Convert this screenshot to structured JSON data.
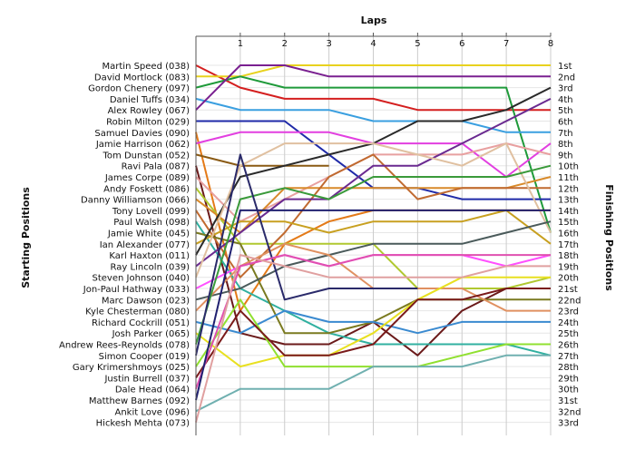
{
  "chart_data": {
    "type": "line",
    "x_title": "Laps",
    "y_left_title": "Starting Positions",
    "y_right_title": "Finishing Positions",
    "x": [
      0,
      1,
      2,
      3,
      4,
      5,
      6,
      7,
      8
    ],
    "x_tick_labels": [
      "1",
      "2",
      "3",
      "4",
      "5",
      "6",
      "7",
      "8"
    ],
    "finishing_labels": [
      "1st",
      "2nd",
      "3rd",
      "4th",
      "5th",
      "6th",
      "7th",
      "8th",
      "9th",
      "10th",
      "11th",
      "12th",
      "13th",
      "14th",
      "15th",
      "16th",
      "17th",
      "18th",
      "19th",
      "20th",
      "21st",
      "22nd",
      "23rd",
      "24th",
      "25th",
      "26th",
      "27th",
      "28th",
      "29th",
      "30th",
      "31st",
      "32nd",
      "33rd"
    ],
    "y_range": [
      1,
      33
    ],
    "grid": "vertical-and-horizontal",
    "series": [
      {
        "name": "Martin Speed (038)",
        "color": "#d41f1f",
        "positions": [
          1,
          3,
          4,
          4,
          4,
          5,
          5,
          5,
          5
        ]
      },
      {
        "name": "David Mortlock (083)",
        "color": "#e8d21e",
        "positions": [
          2,
          2,
          1,
          1,
          1,
          1,
          1,
          1,
          1
        ]
      },
      {
        "name": "Gordon Chenery (097)",
        "color": "#1f9a3a",
        "positions": [
          3,
          2,
          3,
          3,
          3,
          3,
          3,
          3,
          16
        ]
      },
      {
        "name": "Daniel Tuffs (034)",
        "color": "#3a9fe0",
        "positions": [
          4,
          5,
          5,
          5,
          6,
          6,
          6,
          7,
          7
        ]
      },
      {
        "name": "Alex Rowley (067)",
        "color": "#7a2090",
        "positions": [
          5,
          1,
          1,
          2,
          2,
          2,
          2,
          2,
          2
        ]
      },
      {
        "name": "Robin Milton (029)",
        "color": "#1f2aa8",
        "positions": [
          6,
          6,
          6,
          9,
          12,
          12,
          13,
          13,
          13
        ]
      },
      {
        "name": "Samuel Davies (090)",
        "color": "#e47a18",
        "positions": [
          7,
          23,
          17,
          15,
          14,
          14,
          14,
          14,
          14
        ]
      },
      {
        "name": "Jamie Harrison (062)",
        "color": "#e23fe0",
        "positions": [
          8,
          7,
          7,
          7,
          8,
          8,
          8,
          11,
          8
        ]
      },
      {
        "name": "Tom Dunstan (052)",
        "color": "#8a5a14",
        "positions": [
          9,
          10,
          10,
          10,
          null,
          null,
          null,
          null,
          null
        ]
      },
      {
        "name": "Ravi Pala (087)",
        "color": "#6b1a1a",
        "positions": [
          10,
          25,
          26,
          26,
          24,
          27,
          23,
          21,
          21
        ]
      },
      {
        "name": "James Corpe (089)",
        "color": "#e8a0a0",
        "positions": [
          11,
          15,
          13,
          11,
          9,
          9,
          9,
          8,
          9
        ]
      },
      {
        "name": "Andy Foskett (086)",
        "color": "#b0c830",
        "positions": [
          12,
          17,
          17,
          17,
          17,
          21,
          21,
          21,
          20
        ]
      },
      {
        "name": "Danny Williamson (066)",
        "color": "#d88a2a",
        "positions": [
          13,
          16,
          12,
          12,
          12,
          12,
          12,
          12,
          11
        ]
      },
      {
        "name": "Tony Lovell (099)",
        "color": "#c06a30",
        "positions": [
          14,
          20,
          16,
          11,
          9,
          13,
          12,
          12,
          12
        ]
      },
      {
        "name": "Paul Walsh (098)",
        "color": "#30b0a0",
        "positions": [
          15,
          21,
          23,
          25,
          26,
          26,
          26,
          26,
          27
        ]
      },
      {
        "name": "Jamie White (045)",
        "color": "#7a7a20",
        "positions": [
          16,
          17,
          25,
          25,
          24,
          22,
          22,
          22,
          22
        ]
      },
      {
        "name": "Ian Alexander (077)",
        "color": "#c8a020",
        "positions": [
          17,
          15,
          15,
          16,
          15,
          15,
          15,
          14,
          17
        ]
      },
      {
        "name": "Karl Haxton (011)",
        "color": "#2a2a2a",
        "positions": [
          18,
          11,
          10,
          9,
          8,
          6,
          6,
          5,
          3
        ]
      },
      {
        "name": "Ray Lincoln (039)",
        "color": "#6a2a90",
        "positions": [
          19,
          16,
          13,
          13,
          10,
          10,
          8,
          6,
          4
        ]
      },
      {
        "name": "Steven Johnson (040)",
        "color": "#e0c0a0",
        "positions": [
          20,
          10,
          8,
          8,
          8,
          9,
          10,
          8,
          16
        ]
      },
      {
        "name": "Jon-Paul Hathway (033)",
        "color": "#ff50ff",
        "positions": [
          21,
          19,
          18,
          19,
          18,
          18,
          18,
          19,
          18
        ]
      },
      {
        "name": "Marc Dawson (023)",
        "color": "#4a5a5a",
        "positions": [
          22,
          21,
          19,
          18,
          17,
          17,
          17,
          16,
          15
        ]
      },
      {
        "name": "Kyle Chesterman (080)",
        "color": "#e09060",
        "positions": [
          23,
          19,
          17,
          18,
          21,
          21,
          21,
          23,
          23
        ]
      },
      {
        "name": "Richard Cockrill (051)",
        "color": "#3a8ad0",
        "positions": [
          24,
          25,
          23,
          24,
          24,
          25,
          24,
          24,
          24
        ]
      },
      {
        "name": "Josh Parker (065)",
        "color": "#e8e020",
        "positions": [
          25,
          28,
          27,
          27,
          25,
          22,
          20,
          20,
          20
        ]
      },
      {
        "name": "Andrew Rees-Reynolds (078)",
        "color": "#3a9a3a",
        "positions": [
          26,
          13,
          12,
          13,
          11,
          11,
          11,
          11,
          10
        ]
      },
      {
        "name": "Simon Cooper (019)",
        "color": "#2a2a6a",
        "positions": [
          27,
          9,
          22,
          21,
          21,
          21,
          null,
          null,
          null
        ]
      },
      {
        "name": "Gary Krimershmoys (025)",
        "color": "#90e030",
        "positions": [
          28,
          22,
          28,
          28,
          28,
          28,
          27,
          26,
          26
        ]
      },
      {
        "name": "Justin Burrell (037)",
        "color": "#7a1a1a",
        "positions": [
          29,
          23,
          27,
          27,
          26,
          22,
          22,
          21,
          21
        ]
      },
      {
        "name": "Dale Head (064)",
        "color": "#e050b0",
        "positions": [
          30,
          19,
          18,
          19,
          18,
          18,
          18,
          18,
          18
        ]
      },
      {
        "name": "Matthew Barnes (092)",
        "color": "#202070",
        "positions": [
          31,
          14,
          14,
          14,
          14,
          14,
          14,
          14,
          14
        ]
      },
      {
        "name": "Ankit Love (096)",
        "color": "#70b0b0",
        "positions": [
          32,
          30,
          30,
          30,
          28,
          28,
          28,
          27,
          27
        ]
      },
      {
        "name": "Hickesh Mehta (073)",
        "color": "#e0a0a0",
        "positions": [
          33,
          18,
          19,
          20,
          20,
          20,
          20,
          19,
          19
        ]
      }
    ]
  }
}
